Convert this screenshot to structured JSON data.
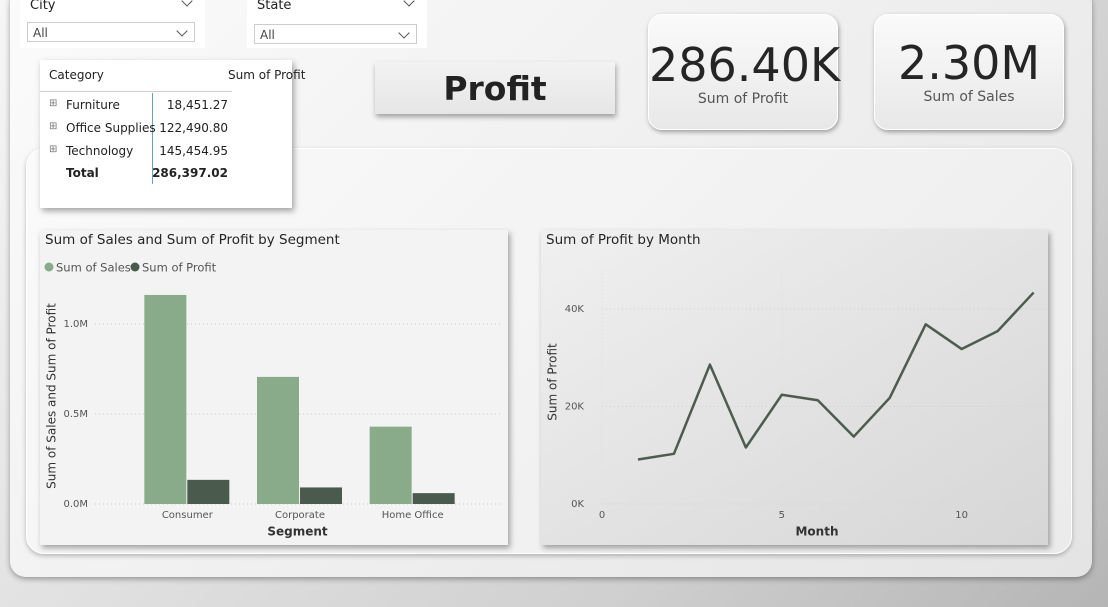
{
  "filters": [
    {
      "label": "City",
      "value": "All"
    },
    {
      "label": "State",
      "value": "All"
    }
  ],
  "table": {
    "header": [
      "Category",
      "Sum of Profit"
    ],
    "rows": [
      [
        "Furniture",
        "18,451.27"
      ],
      [
        "Office Supplies",
        "122,490.80"
      ],
      [
        "Technology",
        "145,454.95"
      ]
    ],
    "total": [
      "Total",
      "286,397.02"
    ]
  },
  "title": "Profit",
  "cards": [
    {
      "value": "286.40K",
      "label": "Sum of Profit"
    },
    {
      "value": "2.30M",
      "label": "Sum of Sales"
    }
  ],
  "chart_data": [
    {
      "type": "bar",
      "title": "Sum of Sales and Sum of Profit by Segment",
      "x_label": "Segment",
      "y_label": "Sum of Sales and Sum of Profit",
      "categories": [
        "Consumer",
        "Corporate",
        "Home Office"
      ],
      "series": [
        {
          "name": "Sum of Sales",
          "color": "#8aab8a",
          "values": [
            1161401,
            706146,
            429653
          ]
        },
        {
          "name": "Sum of Profit",
          "color": "#4a5a4c",
          "values": [
            134119,
            91979,
            60299
          ]
        }
      ],
      "ylim": [
        0,
        1200000
      ],
      "yticks": [
        {
          "value": 0,
          "label": "0.0M"
        },
        {
          "value": 500000,
          "label": "0.5M"
        },
        {
          "value": 1000000,
          "label": "1.0M"
        }
      ],
      "grid": true
    },
    {
      "type": "line",
      "title": "Sum of Profit by Month",
      "x_label": "Month",
      "y_label": "Sum of Profit",
      "x": [
        1,
        2,
        3,
        4,
        5,
        6,
        7,
        8,
        9,
        10,
        11,
        12
      ],
      "values": [
        9134,
        10295,
        28595,
        11588,
        22411,
        21285,
        13832,
        21777,
        36857,
        31785,
        35468,
        43370
      ],
      "color": "#4d5c4e",
      "xlim": [
        0,
        12.4
      ],
      "xticks": [
        0,
        5,
        10
      ],
      "ylim": [
        0,
        48000
      ],
      "yticks": [
        {
          "value": 0,
          "label": "0K"
        },
        {
          "value": 20000,
          "label": "20K"
        },
        {
          "value": 40000,
          "label": "40K"
        }
      ],
      "grid": true
    }
  ]
}
